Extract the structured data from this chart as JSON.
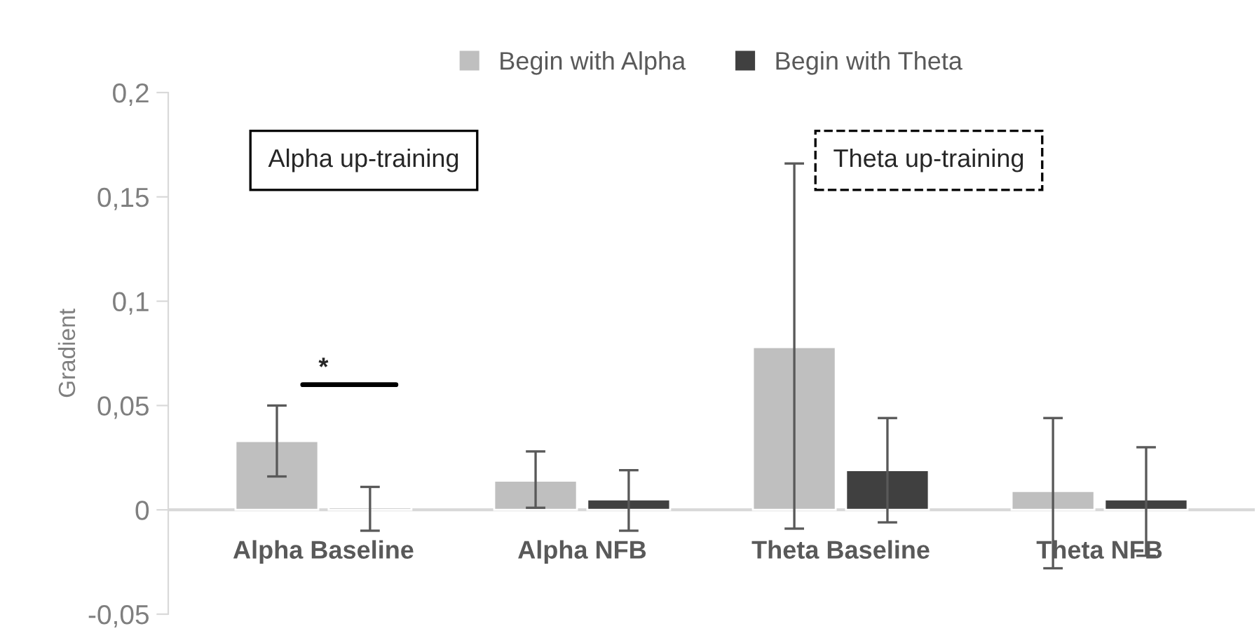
{
  "chart_data": {
    "type": "bar",
    "ylabel": "Gradient",
    "categories": [
      "Alpha Baseline",
      "Alpha NFB",
      "Theta Baseline",
      "Theta NFB"
    ],
    "series": [
      {
        "name": "Begin with Alpha",
        "color": "#bfbfbf",
        "values": [
          0.033,
          0.014,
          0.078,
          0.009
        ],
        "errors": [
          [
            0.016,
            0.05
          ],
          [
            0.001,
            0.028
          ],
          [
            -0.009,
            0.166
          ],
          [
            -0.028,
            0.044
          ]
        ]
      },
      {
        "name": "Begin with Theta",
        "color": "#404040",
        "values": [
          0.001,
          0.005,
          0.019,
          0.005
        ],
        "errors": [
          [
            -0.01,
            0.011
          ],
          [
            -0.01,
            0.019
          ],
          [
            -0.006,
            0.044
          ],
          [
            -0.022,
            0.03
          ]
        ]
      }
    ],
    "ylim": [
      -0.05,
      0.2
    ],
    "yticks": [
      {
        "value": -0.05,
        "label": "-0,05"
      },
      {
        "value": 0,
        "label": "0"
      },
      {
        "value": 0.05,
        "label": "0,05"
      },
      {
        "value": 0.1,
        "label": "0,1"
      },
      {
        "value": 0.15,
        "label": "0,15"
      },
      {
        "value": 0.2,
        "label": "0,2"
      }
    ],
    "annotations": [
      "Alpha up-training",
      "Theta up-training",
      "*"
    ],
    "legend": "top",
    "grid": false
  }
}
